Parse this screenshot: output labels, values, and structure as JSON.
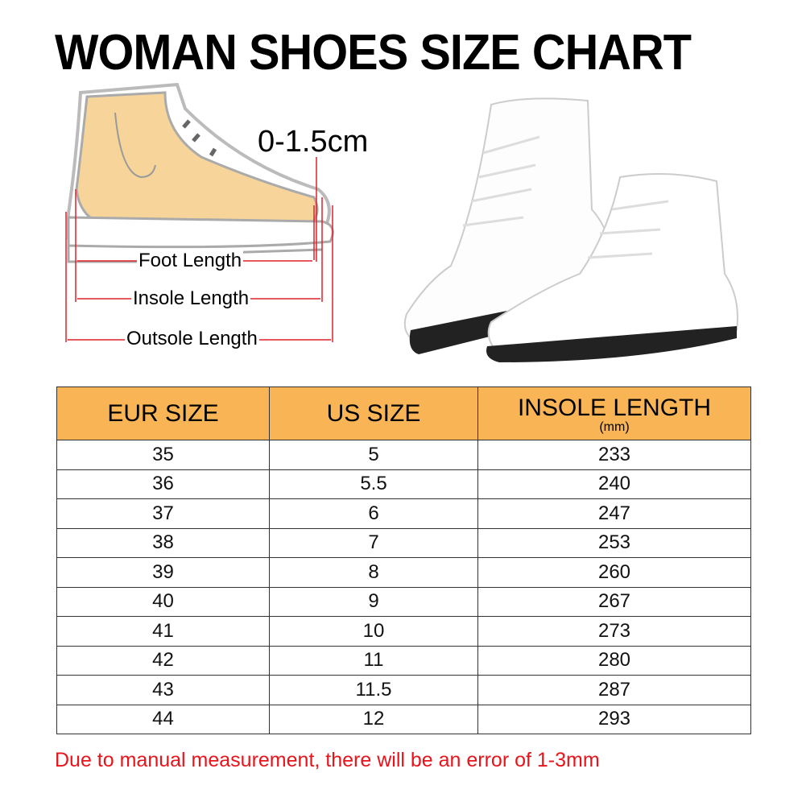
{
  "title": "WOMAN SHOES SIZE CHART",
  "diagram": {
    "allowance": "0-1.5cm",
    "foot_length": "Foot Length",
    "insole_length": "Insole Length",
    "outsole_length": "Outsole Length",
    "measure_color": "#e0202a",
    "foot_color": "#F7D59A"
  },
  "table": {
    "header_color": "#F9B455",
    "headers": [
      "EUR SIZE",
      "US SIZE",
      "INSOLE  LENGTH"
    ],
    "header_sub": "(mm)",
    "rows": [
      [
        "35",
        "5",
        "233"
      ],
      [
        "36",
        "5.5",
        "240"
      ],
      [
        "37",
        "6",
        "247"
      ],
      [
        "38",
        "7",
        "253"
      ],
      [
        "39",
        "8",
        "260"
      ],
      [
        "40",
        "9",
        "267"
      ],
      [
        "41",
        "10",
        "273"
      ],
      [
        "42",
        "11",
        "280"
      ],
      [
        "43",
        "11.5",
        "287"
      ],
      [
        "44",
        "12",
        "293"
      ]
    ]
  },
  "note": "Due to manual measurement, there will be an error of 1-3mm",
  "note_color": "#e8141b"
}
